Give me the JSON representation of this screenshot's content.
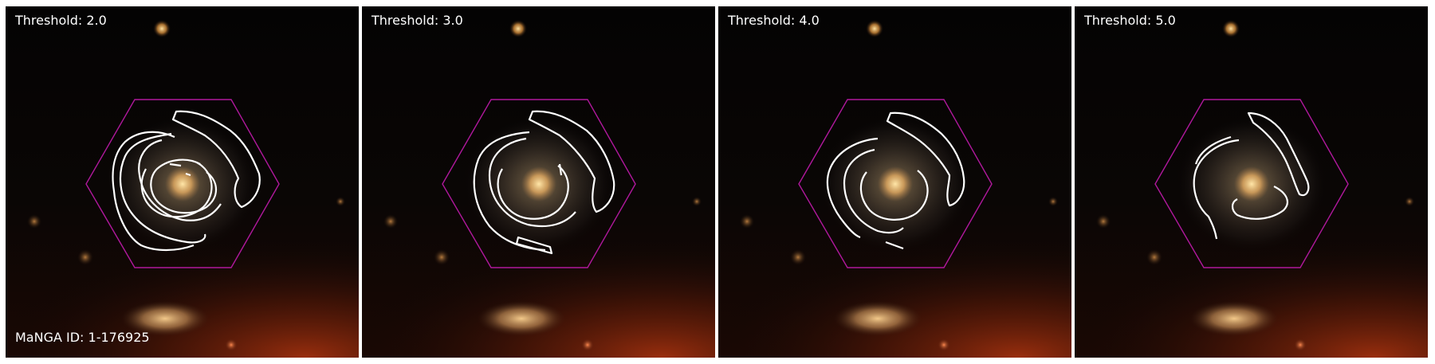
{
  "panels": [
    {
      "label": "Threshold: 2.0"
    },
    {
      "label": "Threshold: 3.0"
    },
    {
      "label": "Threshold: 4.0"
    },
    {
      "label": "Threshold: 5.0"
    }
  ],
  "galaxy_id_label": "MaNGA ID: 1-176925",
  "colors": {
    "background": "#050403",
    "contour": "#ffffff",
    "hexagon": "#b0189c",
    "galaxy_core": "#f5c87a",
    "foreground_glow": "#8a2a10"
  }
}
